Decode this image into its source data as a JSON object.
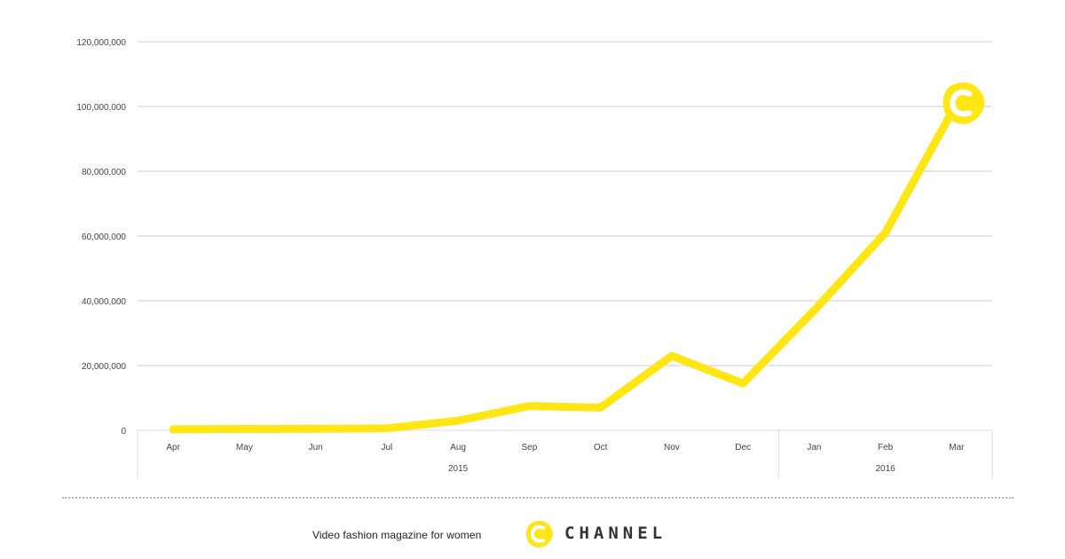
{
  "chart_data": {
    "type": "line",
    "categories": [
      "Apr",
      "May",
      "Jun",
      "Jul",
      "Aug",
      "Sep",
      "Oct",
      "Nov",
      "Dec",
      "Jan",
      "Feb",
      "Mar"
    ],
    "groups": [
      {
        "label": "2015",
        "from": 0,
        "to": 8
      },
      {
        "label": "2016",
        "from": 9,
        "to": 11
      }
    ],
    "series": [
      {
        "values": [
          300000,
          400000,
          500000,
          600000,
          3000000,
          7500000,
          7000000,
          23000000,
          14500000,
          37000000,
          61000000,
          101000000
        ],
        "color": "#ffe614"
      }
    ],
    "yticks": [
      0,
      20000000,
      40000000,
      60000000,
      80000000,
      100000000,
      120000000
    ],
    "ytick_labels": [
      "0",
      "20,000,000",
      "40,000,000",
      "60,000,000",
      "80,000,000",
      "100,000,000",
      "120,000,000"
    ],
    "ylim": [
      0,
      120000000
    ],
    "grid": true,
    "end_marker": "c-channel-logo-icon"
  },
  "footer": {
    "tagline": "Video fashion magazine for women",
    "brand": "CHANNEL",
    "logo_icon": "c-channel-logo-icon",
    "logo_color": "#ffe614"
  }
}
